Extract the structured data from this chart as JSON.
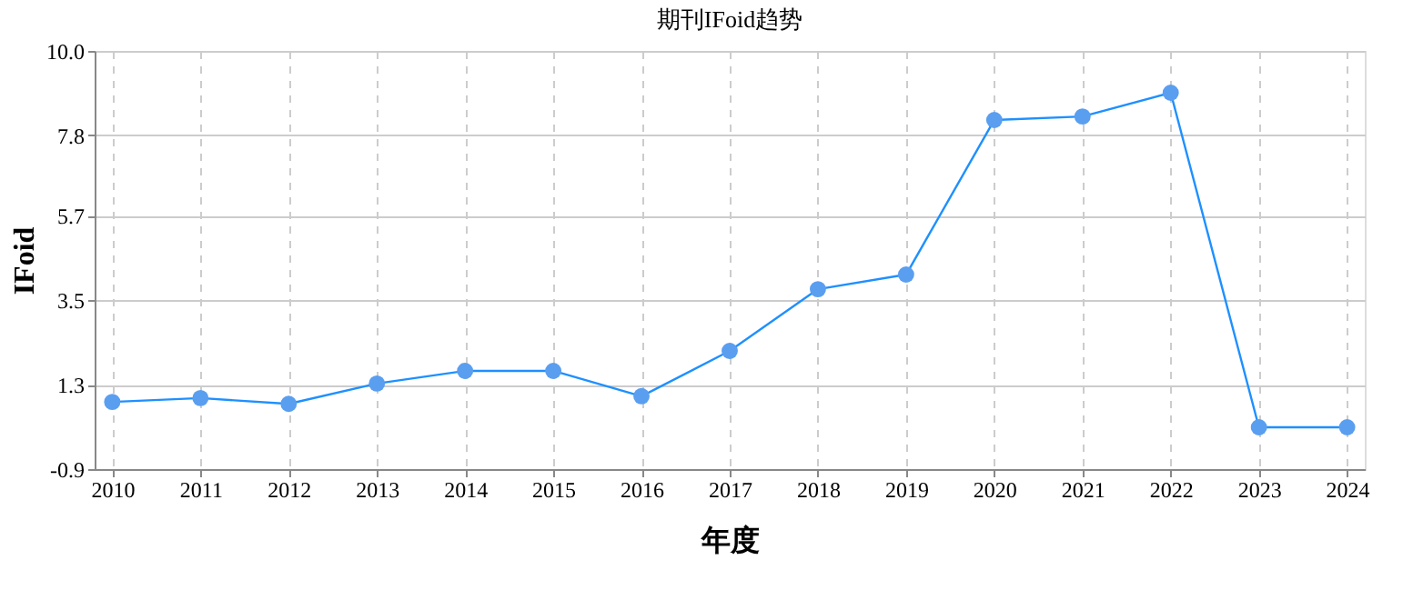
{
  "chart_data": {
    "type": "line",
    "title": "期刊IFoid趋势",
    "xlabel": "年度",
    "ylabel": "IFoid",
    "categories": [
      "2010",
      "2011",
      "2012",
      "2013",
      "2014",
      "2015",
      "2016",
      "2017",
      "2018",
      "2019",
      "2020",
      "2021",
      "2022",
      "2023",
      "2024"
    ],
    "series": [
      {
        "color": "#1e90ff",
        "values": [
          0.85,
          0.95,
          0.8,
          1.33,
          1.66,
          1.66,
          1.0,
          2.18,
          3.79,
          4.17,
          8.2,
          8.29,
          8.91,
          0.19,
          0.19
        ]
      }
    ],
    "ylim": [
      -0.9,
      10.0
    ],
    "yticks": [
      -0.9,
      1.3,
      3.5,
      5.7,
      7.8,
      {
        "value": 10.0,
        "label": "10.0"
      }
    ],
    "grid": true,
    "marker": "circle",
    "line_style": "solid"
  }
}
